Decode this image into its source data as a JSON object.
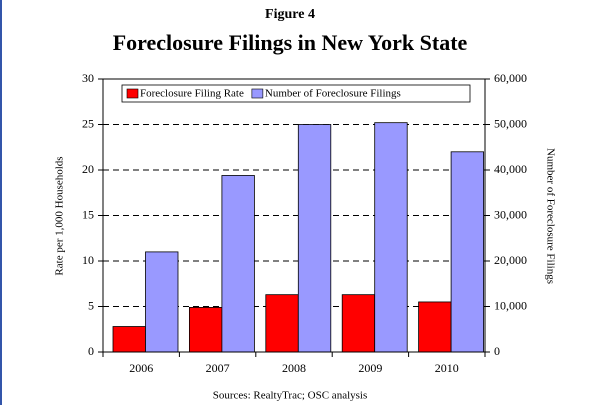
{
  "chart_data": {
    "type": "bar",
    "supertitle": "Figure 4",
    "title": "Foreclosure Filings in New York State",
    "categories": [
      "2006",
      "2007",
      "2008",
      "2009",
      "2010"
    ],
    "series": [
      {
        "name": "Foreclosure Filing Rate",
        "color": "#ff0000",
        "values": [
          2.8,
          4.9,
          6.3,
          6.3,
          5.5
        ]
      },
      {
        "name": "Number of Foreclosure Filings",
        "color": "#9999ff",
        "axis": "y2",
        "values": [
          22000,
          38800,
          50000,
          50400,
          44000
        ]
      }
    ],
    "ylabel": "Rate per 1,000 Households",
    "y2label": "Number of Foreclosure Filings",
    "ylim": [
      0,
      30
    ],
    "yticks": [
      0,
      5,
      10,
      15,
      20,
      25,
      30
    ],
    "y2lim": [
      0,
      60000
    ],
    "y2ticks": [
      0,
      {
        "value": 10000,
        "label": "10,000"
      },
      {
        "value": 20000,
        "label": "20,000"
      },
      {
        "value": 30000,
        "label": "30,000"
      },
      {
        "value": 40000,
        "label": "40,000"
      },
      {
        "value": 50000,
        "label": "50,000"
      },
      {
        "value": 60000,
        "label": "60,000"
      }
    ],
    "grid": true,
    "legend": "top",
    "source": "Sources: RealtyTrac; OSC analysis"
  }
}
